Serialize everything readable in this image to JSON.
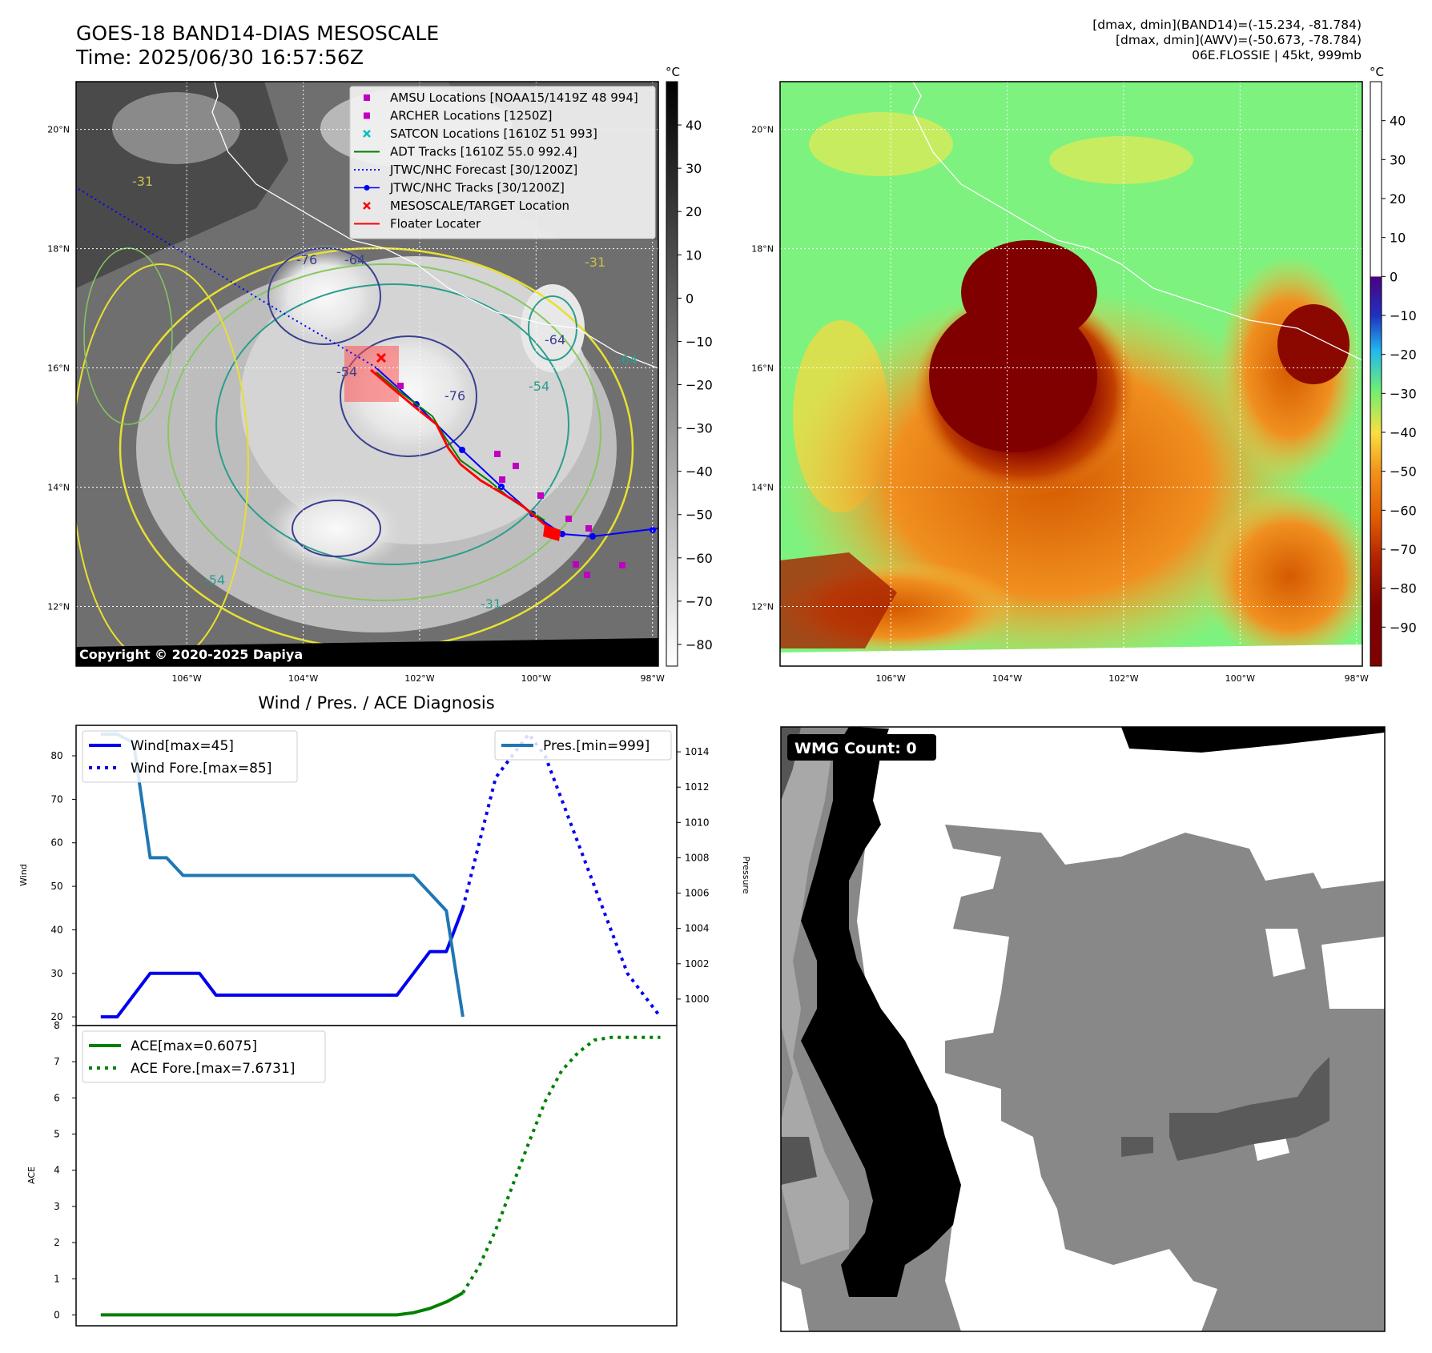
{
  "header": {
    "title_line1": "GOES-18 BAND14-DIAS MESOSCALE",
    "title_line2": "Time: 2025/06/30 16:57:56Z",
    "info_line1": "[dmax, dmin](BAND14)=(-15.234, -81.784)",
    "info_line2": "[dmax, dmin](AWV)=(-50.673, -78.784)",
    "info_line3": "06E.FLOSSIE | 45kt, 999mb"
  },
  "map_ir": {
    "lat_labels": [
      "20°N",
      "18°N",
      "16°N",
      "14°N",
      "12°N"
    ],
    "lat_values": [
      20,
      18,
      16,
      14,
      12
    ],
    "lon_labels": [
      "106°W",
      "104°W",
      "102°W",
      "100°W",
      "98°W"
    ],
    "lon_values": [
      -106,
      -104,
      -102,
      -100,
      -98
    ],
    "extent": {
      "lon_min": -107.9,
      "lon_max": -97.9,
      "lat_min": 11.0,
      "lat_max": 20.8
    },
    "copyright": "Copyright © 2020-2025 Dapiya",
    "contour_labels": [
      "-31",
      "-76",
      "-64",
      "-54",
      "-76",
      "-54",
      "-64",
      "-31",
      "-64",
      "-54",
      "-31"
    ],
    "legend": [
      {
        "label": "AMSU Locations [NOAA15/1419Z 48 994]",
        "marker": "square",
        "color": "#bf00bf"
      },
      {
        "label": "ARCHER Locations [1250Z]",
        "marker": "square",
        "color": "#bf00bf"
      },
      {
        "label": "SATCON Locations [1610Z 51 993]",
        "marker": "x",
        "color": "#00bfbf"
      },
      {
        "label": "ADT Tracks [1610Z 55.0 992.4]",
        "marker": "line",
        "color": "#008000"
      },
      {
        "label": "JTWC/NHC Forecast [30/1200Z]",
        "marker": "dotted",
        "color": "#0000ff"
      },
      {
        "label": "JTWC/NHC Tracks [30/1200Z]",
        "marker": "line-dot",
        "color": "#0000ff"
      },
      {
        "label": "MESOSCALE/TARGET Location",
        "marker": "x",
        "color": "#ff0000"
      },
      {
        "label": "Floater Locater",
        "marker": "line",
        "color": "#ff0000"
      }
    ],
    "colorbar": {
      "unit": "°C",
      "ticks": [
        "40",
        "30",
        "20",
        "10",
        "0",
        "−10",
        "−20",
        "−30",
        "−40",
        "−50",
        "−60",
        "−70",
        "−80"
      ],
      "tick_values": [
        40,
        30,
        20,
        10,
        0,
        -10,
        -20,
        -30,
        -40,
        -50,
        -60,
        -70,
        -80
      ],
      "range": [
        -85,
        50
      ]
    }
  },
  "map_awv": {
    "lat_labels": [
      "20°N",
      "18°N",
      "16°N",
      "14°N",
      "12°N"
    ],
    "lat_values": [
      20,
      18,
      16,
      14,
      12
    ],
    "lon_labels": [
      "106°W",
      "104°W",
      "102°W",
      "100°W",
      "98°W"
    ],
    "lon_values": [
      -106,
      -104,
      -102,
      -100,
      -98
    ],
    "colorbar": {
      "unit": "°C",
      "ticks": [
        "40",
        "30",
        "20",
        "10",
        "0",
        "−10",
        "−20",
        "−30",
        "−40",
        "−50",
        "−60",
        "−70",
        "−80",
        "−90"
      ],
      "tick_values": [
        40,
        30,
        20,
        10,
        0,
        -10,
        -20,
        -30,
        -40,
        -50,
        -60,
        -70,
        -80,
        -90
      ],
      "range": [
        -100,
        50
      ]
    }
  },
  "chart_data": [
    {
      "type": "line",
      "title": "Wind / Pres. / ACE Diagnosis",
      "ylabel": "Wind",
      "y2label": "Pressure",
      "ylim": [
        18,
        87
      ],
      "y2lim": [
        998.5,
        1015.5
      ],
      "yticks": [
        20,
        30,
        40,
        50,
        60,
        70,
        80
      ],
      "y2ticks": [
        1000,
        1002,
        1004,
        1006,
        1008,
        1010,
        1012,
        1014
      ],
      "x": [
        0,
        1,
        2,
        3,
        4,
        5,
        6,
        7,
        8,
        9,
        10,
        11,
        12,
        13,
        14,
        15,
        16,
        17,
        18,
        19,
        20,
        21,
        22,
        23,
        24,
        25,
        26,
        27,
        28,
        29,
        30,
        31,
        32,
        33,
        34
      ],
      "xlim": [
        -1.5,
        35
      ],
      "series": [
        {
          "name": "Wind[max=45]",
          "axis": "left",
          "style": "solid",
          "color": "#0000ee",
          "x": [
            0,
            1,
            2,
            3,
            4,
            5,
            6,
            7,
            8,
            9,
            10,
            11,
            12,
            13,
            14,
            15,
            16,
            17,
            18,
            19,
            20,
            21,
            22
          ],
          "values": [
            20,
            20,
            25,
            30,
            30,
            30,
            30,
            25,
            25,
            25,
            25,
            25,
            25,
            25,
            25,
            25,
            25,
            25,
            25,
            30,
            35,
            35,
            45
          ]
        },
        {
          "name": "Wind Fore.[max=85]",
          "axis": "left",
          "style": "dotted",
          "color": "#0000ee",
          "x": [
            22,
            23,
            24,
            25,
            26,
            27,
            28,
            29,
            30,
            31,
            32,
            33,
            34
          ],
          "values": [
            45,
            60,
            75,
            80,
            85,
            80,
            70,
            60,
            50,
            40,
            30,
            25,
            20
          ]
        },
        {
          "name": "Pres.[min=999]",
          "axis": "right",
          "style": "solid",
          "color": "#1f77b4",
          "x": [
            0,
            1,
            2,
            3,
            4,
            5,
            6,
            7,
            8,
            9,
            10,
            11,
            12,
            13,
            14,
            15,
            16,
            17,
            18,
            19,
            20,
            21,
            22
          ],
          "values": [
            1015,
            1015,
            1014.5,
            1008,
            1008,
            1007,
            1007,
            1007,
            1007,
            1007,
            1007,
            1007,
            1007,
            1007,
            1007,
            1007,
            1007,
            1007,
            1007,
            1007,
            1006,
            1005,
            999
          ]
        }
      ]
    },
    {
      "type": "line",
      "ylabel": "ACE",
      "ylim": [
        -0.3,
        8
      ],
      "yticks": [
        0,
        1,
        2,
        3,
        4,
        5,
        6,
        7,
        8
      ],
      "xlim": [
        -1.5,
        35
      ],
      "series": [
        {
          "name": "ACE[max=0.6075]",
          "style": "solid",
          "color": "#008000",
          "x": [
            0,
            1,
            2,
            3,
            4,
            5,
            6,
            7,
            8,
            9,
            10,
            11,
            12,
            13,
            14,
            15,
            16,
            17,
            18,
            19,
            20,
            21,
            22
          ],
          "values": [
            0,
            0,
            0,
            0,
            0,
            0,
            0,
            0,
            0,
            0,
            0,
            0,
            0,
            0,
            0,
            0,
            0,
            0,
            0,
            0.06,
            0.18,
            0.36,
            0.6075
          ]
        },
        {
          "name": "ACE Fore.[max=7.6731]",
          "style": "dotted",
          "color": "#008000",
          "x": [
            22,
            23,
            24,
            25,
            26,
            27,
            28,
            29,
            30,
            31,
            32,
            33,
            34
          ],
          "values": [
            0.6075,
            1.35,
            2.35,
            3.55,
            4.75,
            5.9,
            6.75,
            7.25,
            7.6,
            7.6731,
            7.6731,
            7.6731,
            7.6731
          ]
        }
      ]
    }
  ],
  "wmg": {
    "label": "WMG Count: 0"
  }
}
